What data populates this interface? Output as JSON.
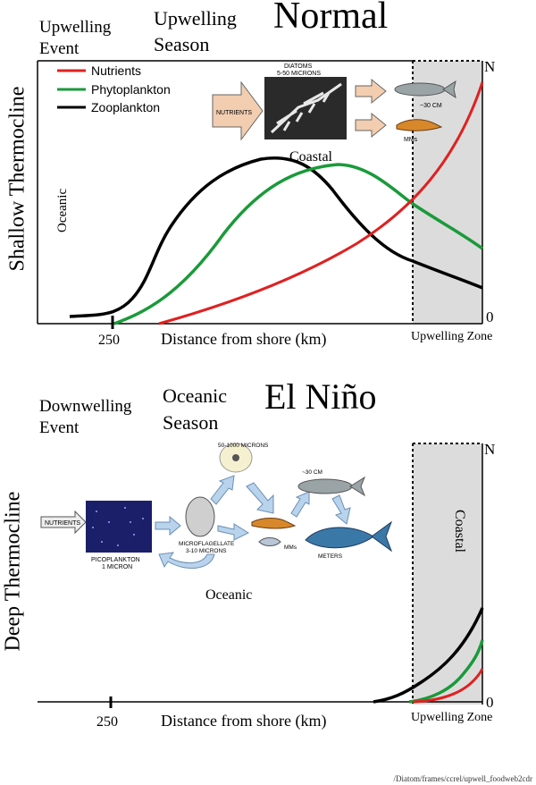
{
  "top": {
    "event_line1": "Upwelling",
    "event_line2": "Event",
    "season_line1": "Upwelling",
    "season_line2": "Season",
    "title": "Normal",
    "side_label": "Shallow Thermocline",
    "oceanic_label": "Oceanic",
    "coastal_label": "Coastal",
    "axis_x_label": "Distance from shore (km)",
    "tick_250": "250",
    "axis_top": "N",
    "axis_bottom": "0",
    "zone_label": "Upwelling Zone",
    "legend": [
      {
        "name": "Nutrients",
        "color": "#e02020"
      },
      {
        "name": "Phytoplankton",
        "color": "#1a9a3a"
      },
      {
        "name": "Zooplankton",
        "color": "#000000"
      }
    ],
    "flow": {
      "nutrients_label": "NUTRIENTS",
      "diatoms_label1": "DIATOMS",
      "diatoms_label2": "5-50 MICRONS",
      "fish_label": "~30 CM",
      "krill_label": "MMs"
    }
  },
  "bottom": {
    "event_line1": "Downwelling",
    "event_line2": "Event",
    "season_line1": "Oceanic",
    "season_line2": "Season",
    "title": "El Niño",
    "side_label": "Deep Thermocline",
    "oceanic_label": "Oceanic",
    "coastal_label": "Coastal",
    "axis_x_label": "Distance from shore (km)",
    "tick_250": "250",
    "axis_top": "N",
    "axis_bottom": "0",
    "zone_label": "Upwelling Zone",
    "flow": {
      "nutrients_label": "NUTRIENTS",
      "pico_label1": "PICOPLANKTON",
      "pico_label2": "1 MICRON",
      "micro_label1": "MICROFLAGELLATE",
      "micro_label2": "3-10 MICRONS",
      "large_label": "50-1000 MICRONS",
      "fish_label": "~30 CM",
      "mms_label": "MMs",
      "tuna_label": "METERS"
    }
  },
  "footer": "/Diatom/frames/ccrel/upwell_foodweb2cdr",
  "colors": {
    "zone_fill": "#dcdcdc",
    "arrow_fill": "#f2cdb0",
    "arrow_blue": "#b9d3ec"
  }
}
